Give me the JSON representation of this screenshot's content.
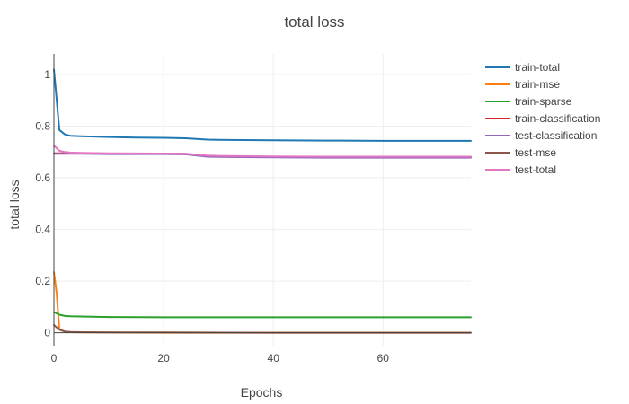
{
  "chart_data": {
    "type": "line",
    "title": "total loss",
    "xlabel": "Epochs",
    "ylabel": "total loss",
    "xlim": [
      0,
      76
    ],
    "ylim": [
      -0.05,
      1.08
    ],
    "xticks": [
      0,
      20,
      40,
      60
    ],
    "yticks": [
      0,
      0.2,
      0.4,
      0.6,
      0.8,
      1
    ],
    "ytick_labels": [
      "0",
      "0.2",
      "0.4",
      "0.6",
      "0.8",
      "1"
    ],
    "grid": true,
    "legend_position": "right",
    "series": [
      {
        "name": "train-total",
        "color": "#1f77b4",
        "x": [
          0,
          1,
          2,
          3,
          5,
          10,
          15,
          20,
          24,
          28,
          30,
          40,
          50,
          60,
          70,
          76
        ],
        "y": [
          1.02,
          0.785,
          0.768,
          0.763,
          0.761,
          0.758,
          0.756,
          0.755,
          0.753,
          0.748,
          0.747,
          0.745,
          0.744,
          0.743,
          0.743,
          0.743
        ]
      },
      {
        "name": "train-mse",
        "color": "#ff7f0e",
        "x": [
          0,
          0.5,
          1,
          2,
          3,
          5,
          10,
          20,
          40,
          60,
          76
        ],
        "y": [
          0.235,
          0.15,
          0.012,
          0.004,
          0.002,
          0.001,
          0.001,
          0.0,
          0.0,
          0.0,
          0.0
        ]
      },
      {
        "name": "train-sparse",
        "color": "#2ca02c",
        "x": [
          0,
          1,
          2,
          3,
          5,
          10,
          20,
          30,
          40,
          50,
          60,
          70,
          76
        ],
        "y": [
          0.08,
          0.07,
          0.065,
          0.064,
          0.063,
          0.061,
          0.06,
          0.06,
          0.06,
          0.06,
          0.06,
          0.06,
          0.06
        ]
      },
      {
        "name": "train-classification",
        "color": "#d62728",
        "x": [
          0,
          5,
          10,
          20,
          24,
          28,
          30,
          40,
          50,
          60,
          70,
          76
        ],
        "y": [
          0.695,
          0.695,
          0.694,
          0.694,
          0.693,
          0.684,
          0.683,
          0.681,
          0.68,
          0.68,
          0.68,
          0.68
        ]
      },
      {
        "name": "test-classification",
        "color": "#9467bd",
        "x": [
          0,
          5,
          10,
          20,
          24,
          28,
          30,
          40,
          50,
          60,
          70,
          76
        ],
        "y": [
          0.693,
          0.693,
          0.692,
          0.692,
          0.691,
          0.682,
          0.681,
          0.679,
          0.678,
          0.678,
          0.678,
          0.678
        ]
      },
      {
        "name": "test-mse",
        "color": "#8c564b",
        "x": [
          0,
          1,
          2,
          3,
          5,
          10,
          20,
          40,
          60,
          76
        ],
        "y": [
          0.03,
          0.012,
          0.005,
          0.003,
          0.002,
          0.001,
          0.001,
          0.0,
          0.0,
          0.0
        ]
      },
      {
        "name": "test-total",
        "color": "#e377c2",
        "x": [
          0,
          1,
          2,
          3,
          5,
          10,
          20,
          24,
          28,
          30,
          40,
          50,
          60,
          70,
          76
        ],
        "y": [
          0.725,
          0.705,
          0.7,
          0.698,
          0.697,
          0.695,
          0.694,
          0.693,
          0.686,
          0.685,
          0.683,
          0.682,
          0.682,
          0.682,
          0.682
        ]
      }
    ]
  }
}
